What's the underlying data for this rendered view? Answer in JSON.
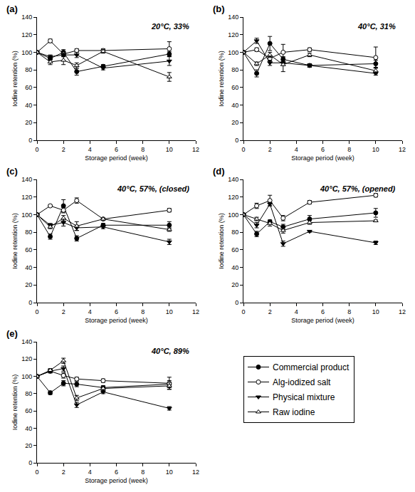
{
  "chart_data": [
    {
      "type": "line",
      "title": "(a)",
      "annotation": "20°C, 33%",
      "x_label": "Storage period (week)",
      "y_label": "Iodine retention (%)",
      "x": [
        0,
        1,
        2,
        3,
        5,
        10
      ],
      "xlim": [
        0,
        12
      ],
      "xticks": [
        0,
        2,
        4,
        6,
        8,
        10,
        12
      ],
      "ylim": [
        0,
        140
      ],
      "yticks": [
        0,
        20,
        40,
        60,
        80,
        100,
        120,
        140
      ],
      "grid": false,
      "legend": "lower right",
      "series": [
        {
          "name": "Commercial product",
          "color": "#000000",
          "marker": "circle",
          "values": [
            100,
            93,
            100,
            78,
            84,
            98
          ],
          "error": [
            0,
            2,
            3,
            4,
            2,
            3
          ]
        },
        {
          "name": "Alg-iodized salt",
          "color": "#000000",
          "marker": "circle-open",
          "values": [
            100,
            113,
            98,
            102,
            102,
            104
          ],
          "error": [
            0,
            2,
            3,
            2,
            2,
            8
          ]
        },
        {
          "name": "Physical mixture",
          "color": "#000000",
          "marker": "triangle-down",
          "values": [
            100,
            95,
            97,
            97,
            82,
            90
          ],
          "error": [
            0,
            2,
            2,
            3,
            2,
            5
          ]
        },
        {
          "name": "Raw iodine",
          "color": "#000000",
          "marker": "triangle-up-open",
          "values": [
            100,
            89,
            91,
            85,
            101,
            72
          ],
          "error": [
            0,
            3,
            5,
            3,
            2,
            5
          ]
        }
      ]
    },
    {
      "type": "line",
      "title": "(b)",
      "annotation": "40°C, 31%",
      "x_label": "Storage period (week)",
      "y_label": "Iodine retention (%)",
      "x": [
        0,
        1,
        2,
        3,
        5,
        10
      ],
      "xlim": [
        0,
        12
      ],
      "xticks": [
        0,
        2,
        4,
        6,
        8,
        10,
        12
      ],
      "ylim": [
        0,
        140
      ],
      "yticks": [
        0,
        20,
        40,
        60,
        80,
        100,
        120,
        140
      ],
      "grid": false,
      "series": [
        {
          "name": "Commercial product",
          "color": "#000000",
          "marker": "circle",
          "values": [
            100,
            76,
            110,
            92,
            85,
            87
          ],
          "error": [
            0,
            4,
            8,
            3,
            2,
            4
          ]
        },
        {
          "name": "Alg-iodized salt",
          "color": "#000000",
          "marker": "circle-open",
          "values": [
            100,
            103,
            93,
            100,
            103,
            94
          ],
          "error": [
            0,
            2,
            3,
            9,
            2,
            12
          ]
        },
        {
          "name": "Physical mixture",
          "color": "#000000",
          "marker": "triangle-down",
          "values": [
            100,
            113,
            88,
            88,
            85,
            76
          ],
          "error": [
            0,
            3,
            3,
            3,
            2,
            2
          ]
        },
        {
          "name": "Raw iodine",
          "color": "#000000",
          "marker": "triangle-up-open",
          "values": [
            100,
            87,
            97,
            86,
            97,
            79
          ],
          "error": [
            0,
            2,
            3,
            8,
            2,
            3
          ]
        }
      ]
    },
    {
      "type": "line",
      "title": "(c)",
      "annotation": "40°C, 57%, (closed)",
      "x_label": "Storage period (week)",
      "y_label": "Iodine retention (%)",
      "x": [
        0,
        1,
        2,
        3,
        5,
        10
      ],
      "xlim": [
        0,
        12
      ],
      "xticks": [
        0,
        2,
        4,
        6,
        8,
        10,
        12
      ],
      "ylim": [
        0,
        140
      ],
      "yticks": [
        0,
        20,
        40,
        60,
        80,
        100,
        120,
        140
      ],
      "grid": false,
      "series": [
        {
          "name": "Commercial product",
          "color": "#000000",
          "marker": "circle",
          "values": [
            100,
            75,
            110,
            73,
            88,
            88
          ],
          "error": [
            0,
            3,
            7,
            3,
            2,
            4
          ]
        },
        {
          "name": "Alg-iodized salt",
          "color": "#000000",
          "marker": "circle-open",
          "values": [
            100,
            110,
            105,
            116,
            95,
            105
          ],
          "error": [
            0,
            1,
            3,
            3,
            1,
            2
          ]
        },
        {
          "name": "Physical mixture",
          "color": "#000000",
          "marker": "triangle-down",
          "values": [
            100,
            88,
            91,
            85,
            86,
            69
          ],
          "error": [
            0,
            2,
            4,
            3,
            2,
            3
          ]
        },
        {
          "name": "Raw iodine",
          "color": "#000000",
          "marker": "triangle-up-open",
          "values": [
            100,
            86,
            96,
            87,
            95,
            83
          ],
          "error": [
            0,
            2,
            3,
            5,
            1,
            2
          ]
        }
      ]
    },
    {
      "type": "line",
      "title": "(d)",
      "annotation": "40°C, 57%, (opened)",
      "x_label": "Storage period (week)",
      "y_label": "Iodine retention (%)",
      "x": [
        0,
        1,
        2,
        3,
        5,
        10
      ],
      "xlim": [
        0,
        12
      ],
      "xticks": [
        0,
        2,
        4,
        6,
        8,
        10,
        12
      ],
      "ylim": [
        0,
        140
      ],
      "yticks": [
        0,
        20,
        40,
        60,
        80,
        100,
        120,
        140
      ],
      "grid": false,
      "series": [
        {
          "name": "Commercial product",
          "color": "#000000",
          "marker": "circle",
          "values": [
            100,
            78,
            92,
            86,
            95,
            102
          ],
          "error": [
            0,
            3,
            2,
            3,
            4,
            5
          ]
        },
        {
          "name": "Alg-iodized salt",
          "color": "#000000",
          "marker": "circle-open",
          "values": [
            100,
            110,
            116,
            96,
            114,
            122
          ],
          "error": [
            0,
            3,
            6,
            3,
            2,
            2
          ]
        },
        {
          "name": "Physical mixture",
          "color": "#000000",
          "marker": "triangle-down",
          "values": [
            100,
            88,
            112,
            67,
            81,
            68
          ],
          "error": [
            0,
            3,
            2,
            3,
            1,
            2
          ]
        },
        {
          "name": "Raw iodine",
          "color": "#000000",
          "marker": "triangle-up-open",
          "values": [
            100,
            95,
            90,
            82,
            91,
            93
          ],
          "error": [
            0,
            2,
            3,
            3,
            2,
            1
          ]
        }
      ]
    },
    {
      "type": "line",
      "title": "(e)",
      "annotation": "40°C, 89%",
      "x_label": "Storage period (week)",
      "y_label": "Iodine retention (%)",
      "x": [
        0,
        1,
        2,
        3,
        5,
        10
      ],
      "xlim": [
        0,
        12
      ],
      "xticks": [
        0,
        2,
        4,
        6,
        8,
        10,
        12
      ],
      "ylim": [
        0,
        140
      ],
      "yticks": [
        0,
        20,
        40,
        60,
        80,
        100,
        120,
        140
      ],
      "grid": false,
      "series": [
        {
          "name": "Commercial product",
          "color": "#000000",
          "marker": "circle",
          "values": [
            100,
            81,
            92,
            91,
            87,
            91
          ],
          "error": [
            0,
            2,
            3,
            3,
            2,
            4
          ]
        },
        {
          "name": "Alg-iodized salt",
          "color": "#000000",
          "marker": "circle-open",
          "values": [
            100,
            106,
            101,
            97,
            95,
            92
          ],
          "error": [
            0,
            2,
            3,
            2,
            2,
            7
          ]
        },
        {
          "name": "Physical mixture",
          "color": "#000000",
          "marker": "triangle-down",
          "values": [
            100,
            106,
            109,
            67,
            82,
            63
          ],
          "error": [
            0,
            2,
            3,
            3,
            2,
            2
          ]
        },
        {
          "name": "Raw iodine",
          "color": "#000000",
          "marker": "triangle-up-open",
          "values": [
            100,
            107,
            118,
            75,
            86,
            89
          ],
          "error": [
            0,
            2,
            3,
            3,
            3,
            4
          ]
        }
      ]
    }
  ]
}
